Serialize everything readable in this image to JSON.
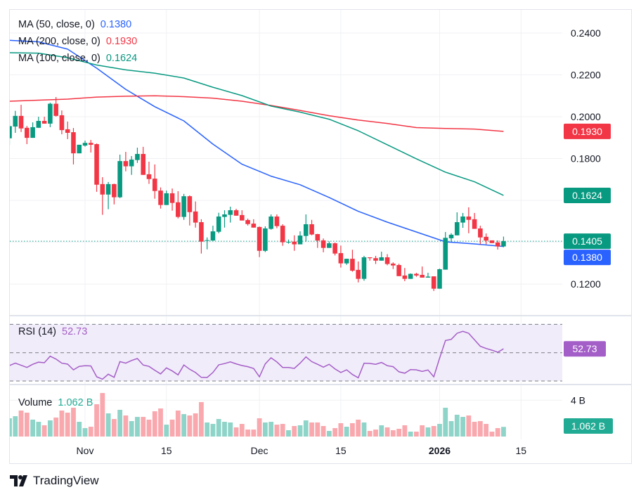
{
  "legend": {
    "ma50": {
      "label": "MA (50, close, 0)",
      "value": "0.1380",
      "color": "#2962ff"
    },
    "ma200": {
      "label": "MA (200, close, 0)",
      "value": "0.1930",
      "color": "#f23645"
    },
    "ma100": {
      "label": "MA (100, close, 0)",
      "value": "0.1624",
      "color": "#089981"
    },
    "rsi": {
      "label": "RSI (14)",
      "value": "52.73",
      "color": "#a45ec8"
    },
    "volume": {
      "label": "Volume",
      "value": "1.062 B",
      "color": "#22ab94"
    }
  },
  "price_axis": {
    "ticks": [
      "0.2400",
      "0.2200",
      "0.2000",
      "0.1800",
      "0.1200"
    ],
    "badges": [
      {
        "value": "0.1930",
        "color": "#f23645"
      },
      {
        "value": "0.1624",
        "color": "#089981"
      },
      {
        "value": "0.1405",
        "color": "#089981"
      },
      {
        "value": "0.1380",
        "color": "#2962ff"
      }
    ]
  },
  "rsi_axis": {
    "badge": "52.73",
    "color": "#a45ec8"
  },
  "volume_axis": {
    "tick": "4 B",
    "badge": "1.062 B",
    "color": "#22ab94"
  },
  "time_axis": [
    {
      "label": "Nov",
      "date": "Nov 1",
      "bold": false
    },
    {
      "label": "15",
      "date": "Nov 15",
      "bold": false
    },
    {
      "label": "Dec",
      "date": "Dec 1",
      "bold": false
    },
    {
      "label": "15",
      "date": "Dec 15",
      "bold": false
    },
    {
      "label": "2026",
      "date": "Jan 1",
      "bold": true
    },
    {
      "label": "15",
      "date": "Jan 15",
      "bold": false
    }
  ],
  "brand": {
    "name": "TradingView"
  },
  "colors": {
    "up": "#089981",
    "down": "#f23645",
    "up_volume": "#8fd4c8",
    "down_volume": "#f9a8ae",
    "rsi_band": "#f1ecf9",
    "grid": "#f0f1f4"
  },
  "chart_data": {
    "type": "candlestick",
    "price_range": [
      0.11,
      0.25
    ],
    "rsi_levels": [
      70,
      50,
      30
    ],
    "volume_unit": "B",
    "current_price": 0.1405,
    "candle_fields": [
      "date",
      "open",
      "high",
      "low",
      "close",
      "volume"
    ],
    "candles": [
      [
        "Oct 19",
        0.1897,
        0.1987,
        0.1866,
        0.1955,
        2.01
      ],
      [
        "Oct 20",
        0.1953,
        0.2028,
        0.1923,
        0.2004,
        2.24
      ],
      [
        "Oct 21",
        0.2004,
        0.2057,
        0.1927,
        0.1944,
        2.86
      ],
      [
        "Oct 22",
        0.1947,
        0.1956,
        0.1869,
        0.1899,
        2.63
      ],
      [
        "Oct 23",
        0.1899,
        0.1973,
        0.1899,
        0.195,
        1.86
      ],
      [
        "Oct 24",
        0.1947,
        0.2,
        0.1947,
        0.198,
        1.62
      ],
      [
        "Oct 25",
        0.198,
        0.2,
        0.1967,
        0.1967,
        1.24
      ],
      [
        "Oct 26",
        0.1967,
        0.2067,
        0.195,
        0.2062,
        1.78
      ],
      [
        "Oct 27",
        0.2062,
        0.2094,
        0.2001,
        0.2004,
        2.09
      ],
      [
        "Oct 28",
        0.2007,
        0.203,
        0.1916,
        0.1936,
        2.86
      ],
      [
        "Oct 29",
        0.194,
        0.1977,
        0.1893,
        0.1923,
        2.63
      ],
      [
        "Oct 30",
        0.1926,
        0.1946,
        0.1772,
        0.1825,
        3.17
      ],
      [
        "Oct 31",
        0.1825,
        0.1866,
        0.1825,
        0.1866,
        1.62
      ],
      [
        "Nov 1",
        0.1862,
        0.1886,
        0.1857,
        0.1875,
        0.93
      ],
      [
        "Nov 2",
        0.1875,
        0.1889,
        0.1829,
        0.1866,
        1.08
      ],
      [
        "Nov 3",
        0.1869,
        0.1872,
        0.1641,
        0.1675,
        3.56
      ],
      [
        "Nov 4",
        0.1678,
        0.1711,
        0.1531,
        0.1628,
        4.79
      ],
      [
        "Nov 5",
        0.1628,
        0.1688,
        0.1558,
        0.1678,
        2.55
      ],
      [
        "Nov 6",
        0.1678,
        0.168,
        0.1581,
        0.1615,
        1.93
      ],
      [
        "Nov 7",
        0.1615,
        0.1819,
        0.1611,
        0.1788,
        2.94
      ],
      [
        "Nov 8",
        0.1788,
        0.1832,
        0.1739,
        0.1763,
        2.32
      ],
      [
        "Nov 9",
        0.1763,
        0.1812,
        0.1722,
        0.1795,
        1.7
      ],
      [
        "Nov 10",
        0.1793,
        0.1852,
        0.1779,
        0.1822,
        2.16
      ],
      [
        "Nov 11",
        0.1822,
        0.1856,
        0.1722,
        0.1722,
        2.16
      ],
      [
        "Nov 12",
        0.1725,
        0.1785,
        0.1679,
        0.1702,
        1.86
      ],
      [
        "Nov 13",
        0.1704,
        0.1772,
        0.1608,
        0.1645,
        2.78
      ],
      [
        "Nov 14",
        0.1647,
        0.1662,
        0.1561,
        0.1578,
        3.09
      ],
      [
        "Nov 15",
        0.1578,
        0.1647,
        0.1578,
        0.1634,
        1.31
      ],
      [
        "Nov 16",
        0.1634,
        0.1657,
        0.1551,
        0.1588,
        1.86
      ],
      [
        "Nov 17",
        0.1591,
        0.1644,
        0.1514,
        0.1521,
        2.86
      ],
      [
        "Nov 18",
        0.1521,
        0.1631,
        0.1507,
        0.162,
        2.47
      ],
      [
        "Nov 19",
        0.162,
        0.1624,
        0.148,
        0.1544,
        2.32
      ],
      [
        "Nov 20",
        0.1547,
        0.1595,
        0.147,
        0.1494,
        2.55
      ],
      [
        "Nov 21",
        0.1496,
        0.151,
        0.1346,
        0.1403,
        3.79
      ],
      [
        "Nov 22",
        0.1408,
        0.1423,
        0.1366,
        0.141,
        1.55
      ],
      [
        "Nov 23",
        0.1408,
        0.1479,
        0.1408,
        0.1452,
        1.39
      ],
      [
        "Nov 24",
        0.145,
        0.1541,
        0.1443,
        0.1523,
        1.93
      ],
      [
        "Nov 25",
        0.1521,
        0.1553,
        0.147,
        0.1533,
        1.62
      ],
      [
        "Nov 26",
        0.1531,
        0.157,
        0.1494,
        0.1553,
        1.55
      ],
      [
        "Nov 27",
        0.1553,
        0.156,
        0.1527,
        0.1527,
        1.01
      ],
      [
        "Nov 28",
        0.153,
        0.1553,
        0.1504,
        0.1504,
        1.39
      ],
      [
        "Nov 29",
        0.1506,
        0.1513,
        0.148,
        0.1487,
        0.77
      ],
      [
        "Nov 30",
        0.1489,
        0.151,
        0.147,
        0.147,
        0.77
      ],
      [
        "Dec 1",
        0.1473,
        0.1475,
        0.1329,
        0.1359,
        2.01
      ],
      [
        "Dec 2",
        0.1359,
        0.1476,
        0.1353,
        0.1466,
        1.55
      ],
      [
        "Dec 3",
        0.1464,
        0.1533,
        0.146,
        0.1523,
        1.62
      ],
      [
        "Dec 4",
        0.1523,
        0.1533,
        0.1467,
        0.1477,
        1.31
      ],
      [
        "Dec 5",
        0.1479,
        0.1486,
        0.1383,
        0.14,
        1.39
      ],
      [
        "Dec 6",
        0.14,
        0.1413,
        0.1393,
        0.1402,
        0.7
      ],
      [
        "Dec 7",
        0.1403,
        0.1433,
        0.1359,
        0.139,
        1.16
      ],
      [
        "Dec 8",
        0.139,
        0.1452,
        0.139,
        0.1432,
        1.24
      ],
      [
        "Dec 9",
        0.143,
        0.1533,
        0.1403,
        0.1486,
        1.78
      ],
      [
        "Dec 10",
        0.1486,
        0.1507,
        0.1433,
        0.1437,
        1.55
      ],
      [
        "Dec 11",
        0.1439,
        0.144,
        0.1373,
        0.1408,
        1.55
      ],
      [
        "Dec 12",
        0.1409,
        0.1418,
        0.1352,
        0.1373,
        1.16
      ],
      [
        "Dec 13",
        0.1373,
        0.1404,
        0.1373,
        0.1395,
        0.62
      ],
      [
        "Dec 14",
        0.1395,
        0.1398,
        0.1337,
        0.1346,
        0.93
      ],
      [
        "Dec 15",
        0.1348,
        0.1384,
        0.1279,
        0.1299,
        1.47
      ],
      [
        "Dec 16",
        0.1299,
        0.1321,
        0.1292,
        0.1321,
        1.08
      ],
      [
        "Dec 17",
        0.1321,
        0.1364,
        0.1259,
        0.1264,
        1.47
      ],
      [
        "Dec 18",
        0.1268,
        0.1308,
        0.1208,
        0.1225,
        1.86
      ],
      [
        "Dec 19",
        0.1225,
        0.1335,
        0.1216,
        0.1328,
        1.55
      ],
      [
        "Dec 20",
        0.1328,
        0.1328,
        0.1312,
        0.1324,
        0.62
      ],
      [
        "Dec 21",
        0.1324,
        0.1335,
        0.1296,
        0.1312,
        0.77
      ],
      [
        "Dec 22",
        0.1312,
        0.1355,
        0.1312,
        0.1328,
        1.24
      ],
      [
        "Dec 23",
        0.1328,
        0.1343,
        0.129,
        0.1296,
        1.01
      ],
      [
        "Dec 24",
        0.1298,
        0.1304,
        0.1272,
        0.1289,
        0.7
      ],
      [
        "Dec 25",
        0.1291,
        0.1297,
        0.1238,
        0.1238,
        0.85
      ],
      [
        "Dec 26",
        0.1241,
        0.1277,
        0.1214,
        0.1225,
        1.24
      ],
      [
        "Dec 27",
        0.1225,
        0.1251,
        0.1225,
        0.1249,
        0.54
      ],
      [
        "Dec 28",
        0.1249,
        0.1254,
        0.1235,
        0.1241,
        0.54
      ],
      [
        "Dec 29",
        0.1244,
        0.1284,
        0.1231,
        0.1231,
        1.24
      ],
      [
        "Dec 30",
        0.1231,
        0.1254,
        0.1231,
        0.1236,
        1.01
      ],
      [
        "Dec 31",
        0.1237,
        0.1237,
        0.1167,
        0.1178,
        1.16
      ],
      [
        "Jan 1",
        0.1178,
        0.1274,
        0.1178,
        0.1271,
        1.39
      ],
      [
        "Jan 2",
        0.1269,
        0.1449,
        0.1269,
        0.1421,
        3.17
      ],
      [
        "Jan 3",
        0.1419,
        0.1443,
        0.1402,
        0.1436,
        1.7
      ],
      [
        "Jan 4",
        0.1433,
        0.1543,
        0.1433,
        0.1496,
        2.4
      ],
      [
        "Jan 5",
        0.1494,
        0.154,
        0.1469,
        0.1523,
        2.16
      ],
      [
        "Jan 6",
        0.1523,
        0.1567,
        0.1443,
        0.1507,
        2.32
      ],
      [
        "Jan 7",
        0.151,
        0.154,
        0.1464,
        0.1464,
        1.62
      ],
      [
        "Jan 8",
        0.1466,
        0.1479,
        0.139,
        0.1423,
        1.7
      ],
      [
        "Jan 9",
        0.1426,
        0.1442,
        0.139,
        0.1408,
        1.39
      ],
      [
        "Jan 10",
        0.1409,
        0.1409,
        0.1396,
        0.1396,
        0.54
      ],
      [
        "Jan 11",
        0.1399,
        0.1409,
        0.1365,
        0.138,
        0.93
      ],
      [
        "Jan 12",
        0.138,
        0.1427,
        0.1376,
        0.1405,
        1.062
      ]
    ],
    "rsi": [
      40.9,
      42.6,
      41.1,
      39.6,
      41.8,
      43.3,
      42.9,
      47.5,
      45.5,
      42.6,
      41.9,
      37.9,
      40.3,
      40.8,
      40.6,
      33.0,
      31.3,
      34.8,
      32.6,
      43.7,
      42.6,
      44.5,
      45.9,
      41.3,
      40.3,
      37.6,
      35.0,
      39.3,
      37.1,
      34.3,
      41.3,
      38.3,
      36.0,
      32.6,
      32.5,
      36.0,
      41.4,
      42.3,
      43.5,
      42.1,
      40.9,
      40.1,
      38.9,
      33.0,
      42.1,
      46.4,
      43.5,
      39.6,
      39.6,
      38.9,
      42.6,
      47.0,
      43.7,
      41.8,
      39.8,
      41.8,
      38.6,
      36.0,
      37.9,
      34.6,
      32.3,
      42.6,
      42.4,
      41.8,
      43.1,
      40.8,
      40.1,
      36.5,
      35.5,
      38.1,
      37.9,
      36.8,
      37.8,
      33.0,
      46.2,
      58.6,
      59.4,
      63.7,
      65.1,
      63.7,
      59.1,
      54.5,
      53.0,
      51.8,
      50.3,
      52.73
    ],
    "moving_averages": [
      {
        "name": "MA (50, close, 0)",
        "color": "#2962ff",
        "points": [
          [
            "Oct 19",
            0.2365
          ],
          [
            "Oct 24",
            0.2358
          ],
          [
            "Oct 29",
            0.2323
          ],
          [
            "Nov 3",
            0.2232
          ],
          [
            "Nov 8",
            0.2131
          ],
          [
            "Nov 13",
            0.2048
          ],
          [
            "Nov 18",
            0.198
          ],
          [
            "Nov 23",
            0.1869
          ],
          [
            "Nov 28",
            0.1773
          ],
          [
            "Dec 3",
            0.1716
          ],
          [
            "Dec 8",
            0.1675
          ],
          [
            "Dec 13",
            0.1614
          ],
          [
            "Dec 18",
            0.1548
          ],
          [
            "Dec 23",
            0.1496
          ],
          [
            "Dec 28",
            0.1449
          ],
          [
            "Jan 2",
            0.1402
          ],
          [
            "Jan 7",
            0.1392
          ],
          [
            "Jan 12",
            0.138
          ]
        ]
      },
      {
        "name": "MA (200, close, 0)",
        "color": "#f23645",
        "points": [
          [
            "Oct 19",
            0.2074
          ],
          [
            "Oct 24",
            0.2079
          ],
          [
            "Oct 29",
            0.2084
          ],
          [
            "Nov 3",
            0.2094
          ],
          [
            "Nov 8",
            0.2098
          ],
          [
            "Nov 13",
            0.21
          ],
          [
            "Nov 18",
            0.2096
          ],
          [
            "Nov 23",
            0.2089
          ],
          [
            "Nov 28",
            0.2074
          ],
          [
            "Dec 3",
            0.2054
          ],
          [
            "Dec 8",
            0.203
          ],
          [
            "Dec 13",
            0.2005
          ],
          [
            "Dec 18",
            0.1984
          ],
          [
            "Dec 23",
            0.1968
          ],
          [
            "Dec 28",
            0.1948
          ],
          [
            "Jan 2",
            0.1944
          ],
          [
            "Jan 7",
            0.1941
          ],
          [
            "Jan 12",
            0.193
          ]
        ]
      },
      {
        "name": "MA (100, close, 0)",
        "color": "#089981",
        "points": [
          [
            "Oct 19",
            0.2306
          ],
          [
            "Oct 24",
            0.2304
          ],
          [
            "Oct 29",
            0.2282
          ],
          [
            "Nov 3",
            0.2247
          ],
          [
            "Nov 8",
            0.2224
          ],
          [
            "Nov 13",
            0.2208
          ],
          [
            "Nov 18",
            0.2185
          ],
          [
            "Nov 23",
            0.2141
          ],
          [
            "Nov 28",
            0.2101
          ],
          [
            "Dec 3",
            0.2051
          ],
          [
            "Dec 8",
            0.2022
          ],
          [
            "Dec 13",
            0.1988
          ],
          [
            "Dec 18",
            0.1933
          ],
          [
            "Dec 23",
            0.1866
          ],
          [
            "Dec 28",
            0.1799
          ],
          [
            "Jan 2",
            0.1735
          ],
          [
            "Jan 7",
            0.1689
          ],
          [
            "Jan 12",
            0.1624
          ]
        ]
      }
    ]
  }
}
